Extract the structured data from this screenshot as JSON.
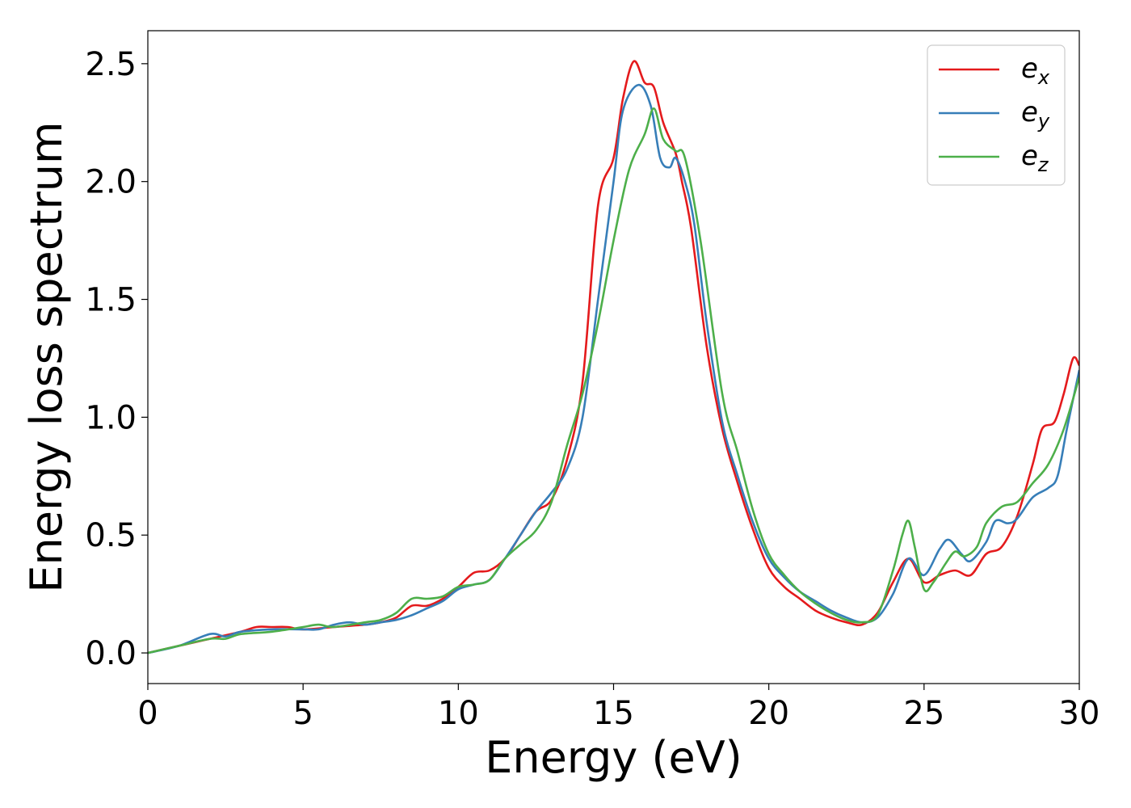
{
  "chart_data": {
    "type": "line",
    "xlabel": "Energy (eV)",
    "ylabel": "Energy loss spectrum",
    "xlim": [
      0,
      30
    ],
    "ylim": [
      -0.13,
      2.64
    ],
    "xticks": [
      0,
      5,
      10,
      15,
      20,
      25,
      30
    ],
    "xtick_labels": [
      "0",
      "5",
      "10",
      "15",
      "20",
      "25",
      "30"
    ],
    "yticks": [
      0.0,
      0.5,
      1.0,
      1.5,
      2.0,
      2.5
    ],
    "ytick_labels": [
      "0.0",
      "0.5",
      "1.0",
      "1.5",
      "2.0",
      "2.5"
    ],
    "grid": false,
    "legend_position": "top-right",
    "series": [
      {
        "name": "e_x",
        "label_main": "e",
        "label_sub": "x",
        "color": "#e41a1c",
        "x": [
          0,
          1,
          2,
          3,
          3.5,
          4,
          4.5,
          5,
          6,
          7,
          7.5,
          8,
          8.5,
          9,
          9.5,
          10,
          10.5,
          11,
          11.5,
          12,
          12.5,
          13,
          13.5,
          14,
          14.5,
          15,
          15.3,
          15.65,
          16,
          16.3,
          16.6,
          17,
          17.2,
          17.5,
          18,
          18.5,
          19,
          19.5,
          20,
          20.5,
          21,
          21.5,
          22,
          22.5,
          23,
          23.5,
          24,
          24.5,
          25,
          25.5,
          26,
          26.5,
          27,
          27.5,
          28,
          28.5,
          28.8,
          29.2,
          29.5,
          29.8,
          30
        ],
        "y": [
          0.0,
          0.03,
          0.06,
          0.09,
          0.11,
          0.11,
          0.11,
          0.1,
          0.11,
          0.12,
          0.13,
          0.15,
          0.2,
          0.2,
          0.23,
          0.28,
          0.34,
          0.35,
          0.4,
          0.5,
          0.6,
          0.65,
          0.82,
          1.15,
          1.9,
          2.1,
          2.35,
          2.51,
          2.42,
          2.4,
          2.25,
          2.12,
          2.0,
          1.8,
          1.3,
          0.95,
          0.72,
          0.52,
          0.36,
          0.28,
          0.23,
          0.18,
          0.15,
          0.13,
          0.12,
          0.17,
          0.3,
          0.4,
          0.3,
          0.33,
          0.35,
          0.33,
          0.42,
          0.45,
          0.58,
          0.8,
          0.95,
          0.98,
          1.1,
          1.25,
          1.22
        ]
      },
      {
        "name": "e_y",
        "label_main": "e",
        "label_sub": "y",
        "color": "#377eb8",
        "x": [
          0,
          1,
          2,
          2.5,
          3,
          4,
          5,
          5.5,
          6,
          6.5,
          7,
          7.5,
          8,
          8.5,
          9,
          9.5,
          10,
          10.5,
          11,
          11.5,
          12,
          12.5,
          13,
          13.5,
          14,
          14.5,
          15,
          15.3,
          15.8,
          16.2,
          16.5,
          16.8,
          17.0,
          17.3,
          17.6,
          18,
          18.5,
          19,
          19.5,
          20,
          20.5,
          21,
          21.5,
          22,
          22.5,
          23,
          23.5,
          24,
          24.5,
          25,
          25.5,
          25.8,
          26.2,
          26.5,
          27,
          27.3,
          27.7,
          28,
          28.5,
          29,
          29.3,
          29.6,
          30
        ],
        "y": [
          0.0,
          0.03,
          0.08,
          0.07,
          0.09,
          0.1,
          0.1,
          0.1,
          0.12,
          0.13,
          0.12,
          0.13,
          0.14,
          0.16,
          0.19,
          0.22,
          0.27,
          0.29,
          0.31,
          0.4,
          0.5,
          0.6,
          0.68,
          0.78,
          1.0,
          1.5,
          2.0,
          2.3,
          2.41,
          2.32,
          2.1,
          2.06,
          2.1,
          2.0,
          1.82,
          1.4,
          0.98,
          0.75,
          0.55,
          0.4,
          0.32,
          0.26,
          0.22,
          0.18,
          0.15,
          0.13,
          0.15,
          0.25,
          0.4,
          0.33,
          0.44,
          0.48,
          0.42,
          0.39,
          0.47,
          0.56,
          0.55,
          0.57,
          0.66,
          0.7,
          0.75,
          0.95,
          1.2
        ]
      },
      {
        "name": "e_z",
        "label_main": "e",
        "label_sub": "z",
        "color": "#4daf4a",
        "x": [
          0,
          1,
          2,
          2.5,
          3,
          4,
          5,
          5.5,
          6,
          7,
          7.5,
          8,
          8.5,
          9,
          9.5,
          10,
          10.5,
          11,
          11.5,
          12,
          12.5,
          13,
          13.5,
          14,
          14.5,
          15,
          15.5,
          16,
          16.3,
          16.6,
          17.0,
          17.3,
          17.8,
          18.5,
          19,
          19.5,
          20,
          20.5,
          21,
          21.5,
          22,
          22.5,
          23,
          23.5,
          24,
          24.3,
          24.5,
          24.7,
          25.0,
          25.3,
          25.7,
          26.0,
          26.3,
          26.7,
          27,
          27.5,
          28,
          28.5,
          29,
          29.5,
          30
        ],
        "y": [
          0.0,
          0.03,
          0.06,
          0.06,
          0.08,
          0.09,
          0.11,
          0.12,
          0.11,
          0.13,
          0.14,
          0.17,
          0.23,
          0.23,
          0.24,
          0.28,
          0.29,
          0.31,
          0.4,
          0.46,
          0.52,
          0.64,
          0.88,
          1.1,
          1.4,
          1.75,
          2.05,
          2.2,
          2.31,
          2.18,
          2.13,
          2.1,
          1.75,
          1.1,
          0.85,
          0.6,
          0.42,
          0.33,
          0.26,
          0.21,
          0.17,
          0.14,
          0.13,
          0.16,
          0.35,
          0.5,
          0.56,
          0.45,
          0.27,
          0.3,
          0.38,
          0.43,
          0.41,
          0.45,
          0.55,
          0.62,
          0.64,
          0.72,
          0.8,
          0.95,
          1.17
        ]
      }
    ]
  }
}
